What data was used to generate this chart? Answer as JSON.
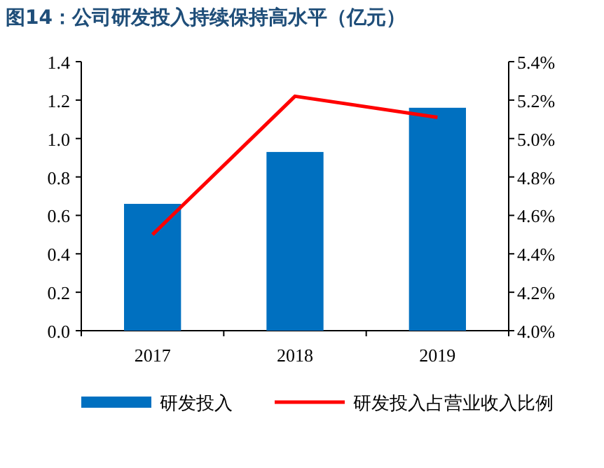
{
  "chart_data": {
    "type": "bar",
    "title": "图14：公司研发投入持续保持高水平（亿元）",
    "categories": [
      "2017",
      "2018",
      "2019"
    ],
    "series": [
      {
        "name": "研发投入",
        "color": "#0070c0",
        "values": [
          0.66,
          0.93,
          1.16
        ]
      },
      {
        "name": "研发投入占营业收入比例",
        "type": "line",
        "axis": "y2",
        "color": "#ff0000",
        "values": [
          4.5,
          5.22,
          5.11
        ]
      }
    ],
    "ylim": [
      0,
      1.4
    ],
    "yticks": [
      {
        "value": 0,
        "label": "0.0"
      },
      0.2,
      0.4,
      0.6,
      0.8,
      {
        "value": 1,
        "label": "1.0"
      },
      1.2,
      1.4
    ],
    "y2lim": [
      4.0,
      5.4
    ],
    "y2ticks": [
      {
        "value": 4.0,
        "label": "4.0%"
      },
      {
        "value": 4.2,
        "label": "4.2%"
      },
      {
        "value": 4.4,
        "label": "4.4%"
      },
      {
        "value": 4.6,
        "label": "4.6%"
      },
      {
        "value": 4.8,
        "label": "4.8%"
      },
      {
        "value": 5.0,
        "label": "5.0%"
      },
      {
        "value": 5.2,
        "label": "5.2%"
      },
      {
        "value": 5.4,
        "label": "5.4%"
      }
    ],
    "legend": "bottom",
    "grid": false,
    "marker": "none"
  }
}
